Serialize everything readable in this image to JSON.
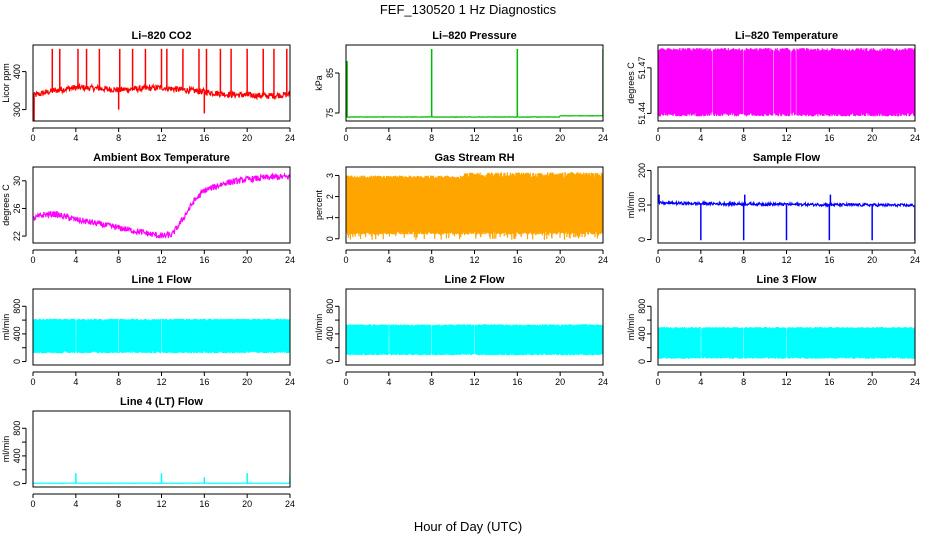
{
  "figure": {
    "title": "FEF_130520  1 Hz Diagnostics",
    "xlabel": "Hour of Day (UTC)"
  },
  "chart_data": [
    {
      "type": "line",
      "title": "Li–820 CO2",
      "ylabel": "Licor ppm",
      "color": "#ff0000",
      "xlim": [
        0,
        24
      ],
      "ylim": [
        270,
        470
      ],
      "yticks": [
        300,
        400
      ],
      "ytick_labels": [
        "300",
        "400"
      ],
      "xticks": [
        0,
        4,
        8,
        12,
        16,
        20,
        24
      ],
      "baseline": [
        [
          0,
          337
        ],
        [
          2,
          350
        ],
        [
          4,
          358
        ],
        [
          6,
          356
        ],
        [
          8,
          352
        ],
        [
          10,
          355
        ],
        [
          12,
          358
        ],
        [
          14,
          352
        ],
        [
          16,
          347
        ],
        [
          18,
          340
        ],
        [
          20,
          338
        ],
        [
          22,
          336
        ],
        [
          24,
          340
        ]
      ],
      "spikes": [
        [
          0.1,
          265
        ],
        [
          1.8,
          460
        ],
        [
          2.5,
          460
        ],
        [
          4.2,
          460
        ],
        [
          5.0,
          460
        ],
        [
          6.2,
          460
        ],
        [
          8.0,
          300
        ],
        [
          8.1,
          460
        ],
        [
          9.3,
          460
        ],
        [
          10.5,
          460
        ],
        [
          12.0,
          460
        ],
        [
          12.5,
          460
        ],
        [
          14.0,
          460
        ],
        [
          15.5,
          460
        ],
        [
          16.0,
          290
        ],
        [
          16.2,
          460
        ],
        [
          17.5,
          460
        ],
        [
          18.5,
          460
        ],
        [
          20.0,
          460
        ],
        [
          21.5,
          460
        ],
        [
          22.5,
          460
        ],
        [
          23.7,
          460
        ]
      ],
      "noise": 8
    },
    {
      "type": "line",
      "title": "Li–820 Pressure",
      "ylabel": "kPa",
      "color": "#00bb00",
      "xlim": [
        0,
        24
      ],
      "ylim": [
        73,
        92
      ],
      "yticks": [
        75,
        85
      ],
      "ytick_labels": [
        "75",
        "85"
      ],
      "xticks": [
        0,
        4,
        8,
        12,
        16,
        20,
        24
      ],
      "baseline": [
        [
          0,
          74.0
        ],
        [
          19.9,
          74.0
        ],
        [
          20.0,
          74.3
        ],
        [
          24,
          74.3
        ]
      ],
      "spikes": [
        [
          0.1,
          88
        ],
        [
          8.0,
          91
        ],
        [
          16.0,
          91
        ],
        [
          24.0,
          91
        ]
      ],
      "noise": 0.05
    },
    {
      "type": "area",
      "title": "Li–820 Temperature",
      "ylabel": "degrees C",
      "color": "#ff00ff",
      "xlim": [
        0,
        24
      ],
      "ylim": [
        51.435,
        51.485
      ],
      "yticks": [
        51.44,
        51.47
      ],
      "ytick_labels": [
        "51.44",
        "51.47"
      ],
      "xticks": [
        0,
        4,
        8,
        12,
        16,
        20,
        24
      ],
      "fill_range": [
        51.438,
        51.483
      ],
      "gaps": [
        5.1,
        8.0,
        10.8,
        11.3,
        12.4,
        12.9
      ]
    },
    {
      "type": "line",
      "title": "Ambient Box Temperature",
      "ylabel": "degrees C",
      "color": "#ff00ff",
      "xlim": [
        0,
        24
      ],
      "ylim": [
        21,
        32
      ],
      "yticks": [
        22,
        26,
        30
      ],
      "ytick_labels": [
        "22",
        "26",
        "30"
      ],
      "xticks": [
        0,
        4,
        8,
        12,
        16,
        20,
        24
      ],
      "baseline": [
        [
          0,
          24.5
        ],
        [
          1,
          25.1
        ],
        [
          2,
          25.2
        ],
        [
          3,
          24.8
        ],
        [
          4,
          24.4
        ],
        [
          6,
          23.8
        ],
        [
          8,
          23.2
        ],
        [
          10,
          22.6
        ],
        [
          12,
          22.0
        ],
        [
          13,
          22.2
        ],
        [
          14,
          24.5
        ],
        [
          15,
          27.0
        ],
        [
          16,
          28.6
        ],
        [
          18,
          29.7
        ],
        [
          20,
          30.2
        ],
        [
          22,
          30.5
        ],
        [
          24,
          30.6
        ]
      ],
      "noise": 0.45
    },
    {
      "type": "area",
      "title": "Gas Stream RH",
      "ylabel": "percent",
      "color": "#ffa500",
      "xlim": [
        0,
        24
      ],
      "ylim": [
        -0.2,
        3.4
      ],
      "yticks": [
        0,
        1,
        2,
        3
      ],
      "ytick_labels": [
        "0",
        "1",
        "2",
        "3"
      ],
      "xticks": [
        0,
        4,
        8,
        12,
        16,
        20,
        24
      ],
      "fill_range": [
        0.2,
        3.0
      ],
      "dip_min": -0.05,
      "top_max": 3.15
    },
    {
      "type": "line",
      "title": "Sample Flow",
      "ylabel": "ml/min",
      "color": "#0000ff",
      "xlim": [
        0,
        24
      ],
      "ylim": [
        -10,
        210
      ],
      "yticks": [
        0,
        100,
        200
      ],
      "ytick_labels": [
        "0",
        "100",
        "200"
      ],
      "xticks": [
        0,
        4,
        8,
        12,
        16,
        20,
        24
      ],
      "baseline": [
        [
          0,
          106
        ],
        [
          4,
          104
        ],
        [
          8,
          103
        ],
        [
          12,
          102
        ],
        [
          16,
          101
        ],
        [
          20,
          100
        ],
        [
          24,
          99
        ]
      ],
      "spikes": [
        [
          0.1,
          130
        ],
        [
          4.0,
          -2
        ],
        [
          8.0,
          -2
        ],
        [
          8.1,
          130
        ],
        [
          12.0,
          -2
        ],
        [
          16.0,
          -2
        ],
        [
          16.1,
          130
        ],
        [
          20.0,
          -2
        ],
        [
          24.0,
          -2
        ]
      ],
      "noise": 4
    },
    {
      "type": "area",
      "title": "Line 1 Flow",
      "ylabel": "ml/min",
      "color": "#00ffff",
      "xlim": [
        0,
        24
      ],
      "ylim": [
        -50,
        1050
      ],
      "yticks": [
        0,
        200,
        400,
        600,
        800
      ],
      "ytick_labels": [
        "0",
        "400",
        "800"
      ],
      "ytick_label_values": [
        0,
        400,
        800
      ],
      "xticks": [
        0,
        4,
        8,
        12,
        16,
        20,
        24
      ],
      "fill_range": [
        120,
        620
      ],
      "gaps": [
        4.0,
        8.0,
        12.0,
        16.0,
        20.0
      ]
    },
    {
      "type": "area",
      "title": "Line 2 Flow",
      "ylabel": "ml/min",
      "color": "#00ffff",
      "xlim": [
        0,
        24
      ],
      "ylim": [
        -50,
        1050
      ],
      "yticks": [
        0,
        200,
        400,
        600,
        800
      ],
      "ytick_labels": [
        "0",
        "400",
        "800"
      ],
      "ytick_label_values": [
        0,
        400,
        800
      ],
      "xticks": [
        0,
        4,
        8,
        12,
        16,
        20,
        24
      ],
      "fill_range": [
        90,
        540
      ],
      "gaps": [
        4.0,
        8.0,
        12.0,
        16.0,
        20.0
      ]
    },
    {
      "type": "area",
      "title": "Line 3 Flow",
      "ylabel": "ml/min",
      "color": "#00ffff",
      "xlim": [
        0,
        24
      ],
      "ylim": [
        -50,
        1050
      ],
      "yticks": [
        0,
        200,
        400,
        600,
        800
      ],
      "ytick_labels": [
        "0",
        "400",
        "800"
      ],
      "ytick_label_values": [
        0,
        400,
        800
      ],
      "xticks": [
        0,
        4,
        8,
        12,
        16,
        20,
        24
      ],
      "fill_range": [
        40,
        500
      ],
      "gaps": [
        4.0,
        8.0,
        12.0,
        16.0,
        20.0
      ]
    },
    {
      "type": "line",
      "title": "Line 4 (LT) Flow",
      "ylabel": "ml/min",
      "color": "#00ffff",
      "xlim": [
        0,
        24
      ],
      "ylim": [
        -50,
        1050
      ],
      "yticks": [
        0,
        200,
        400,
        600,
        800
      ],
      "ytick_labels": [
        "0",
        "400",
        "800"
      ],
      "ytick_label_values": [
        0,
        400,
        800
      ],
      "xticks": [
        0,
        4,
        8,
        12,
        16,
        20,
        24
      ],
      "baseline": [
        [
          0,
          5
        ],
        [
          24,
          5
        ]
      ],
      "spikes": [
        [
          4.0,
          150
        ],
        [
          12.0,
          150
        ],
        [
          16.0,
          90
        ],
        [
          20.0,
          150
        ],
        [
          24.0,
          120
        ]
      ],
      "noise": 2
    }
  ]
}
